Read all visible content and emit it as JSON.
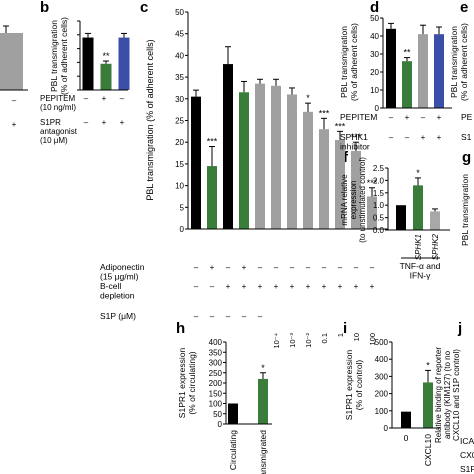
{
  "panel_labels": [
    "b",
    "c",
    "d",
    "e",
    "f",
    "g",
    "h",
    "i",
    "j"
  ],
  "colors": {
    "black": "#000000",
    "green": "#3a7d3a",
    "grey": "#a0a0a0",
    "blue": "#3b4fa8",
    "light_grey": "#a8a8a8"
  },
  "chart_data": [
    {
      "id": "a_partial",
      "type": "bar",
      "series": [
        {
          "values": [
            37
          ]
        }
      ],
      "row_marks": [
        "–",
        "+"
      ]
    },
    {
      "id": "b",
      "type": "bar",
      "ylabel": "PBL transmigration\n(% of adherent cells)",
      "ylim": [
        0,
        50
      ],
      "yticks": [
        0,
        10,
        20,
        30,
        40,
        50
      ],
      "values": [
        38,
        19,
        38
      ],
      "errors": [
        3,
        2,
        3
      ],
      "colors": [
        "#000000",
        "#3a7d3a",
        "#3b4fa8"
      ],
      "sig": [
        "",
        "**",
        ""
      ],
      "conditions": [
        {
          "label": "PEPITEM\n(10 ng/ml)",
          "marks": [
            "–",
            "+",
            "–"
          ]
        },
        {
          "label": "S1PR\nantagonist\n(10 μM)",
          "marks": [
            "–",
            "+",
            "+"
          ]
        }
      ]
    },
    {
      "id": "c",
      "type": "bar",
      "ylabel": "PBL transmigration (% of adherent cells)",
      "ylim": [
        0,
        50
      ],
      "yticks": [
        0,
        5,
        10,
        15,
        20,
        25,
        30,
        35,
        40,
        45,
        50
      ],
      "values": [
        30.5,
        14.5,
        38,
        31.5,
        33.5,
        33,
        31,
        27,
        23,
        20.5,
        18,
        7.5
      ],
      "errors": [
        1.5,
        4.5,
        4,
        2.5,
        1,
        1.5,
        1.5,
        2,
        2.5,
        2,
        2,
        2
      ],
      "colors": [
        "#000000",
        "#3a7d3a",
        "#000000",
        "#3a7d3a",
        "#a0a0a0",
        "#a0a0a0",
        "#a0a0a0",
        "#a0a0a0",
        "#a0a0a0",
        "#a0a0a0",
        "#a0a0a0",
        "#a0a0a0"
      ],
      "sig": [
        "",
        "***",
        "",
        "",
        "",
        "",
        "",
        "*",
        "***",
        "***",
        "***",
        "***"
      ],
      "conditions": [
        {
          "label": "Adiponectin\n(15 μg/ml)",
          "marks": [
            "–",
            "+",
            "–",
            "+",
            "–",
            "–",
            "–",
            "–",
            "–",
            "–",
            "–",
            "–"
          ]
        },
        {
          "label": "B-cell\ndepletion",
          "marks": [
            "–",
            "–",
            "+",
            "+",
            "+",
            "+",
            "+",
            "+",
            "+",
            "+",
            "+",
            "+"
          ]
        },
        {
          "label": "S1P (μM)",
          "marks": [
            "–",
            "–",
            "–",
            "–",
            "–",
            "10⁻⁴",
            "10⁻³",
            "10⁻²",
            "0.1",
            "1",
            "10",
            "100"
          ]
        }
      ]
    },
    {
      "id": "d",
      "type": "bar",
      "ylabel": "PBL transmigration\n(% of adherent cells)",
      "ylim": [
        0,
        50
      ],
      "yticks": [
        0,
        10,
        20,
        30,
        40,
        50
      ],
      "values": [
        44,
        26,
        41,
        41
      ],
      "errors": [
        3,
        2,
        5,
        4
      ],
      "colors": [
        "#000000",
        "#3a7d3a",
        "#a0a0a0",
        "#3b4fa8"
      ],
      "sig": [
        "",
        "**",
        "",
        ""
      ],
      "conditions": [
        {
          "label": "PEPITEM",
          "marks": [
            "–",
            "+",
            "–",
            "+"
          ]
        },
        {
          "label": "SPHK1\ninhibitor",
          "marks": [
            "–",
            "–",
            "+",
            "+"
          ]
        }
      ]
    },
    {
      "id": "e",
      "type": "bar",
      "ylabel": "PBL transmigration\n(% of adherent cells)",
      "row_labels": [
        "PE",
        "S1"
      ]
    },
    {
      "id": "f",
      "type": "bar",
      "ylabel": "mRNA relative\nexpression\n(to unstimulated control)",
      "ylim": [
        0,
        2.5
      ],
      "yticks": [
        0,
        0.5,
        1.0,
        1.5,
        2.0,
        2.5
      ],
      "categories": [
        "",
        "SPHK1",
        "SPHK2"
      ],
      "values": [
        1.0,
        1.8,
        0.75
      ],
      "errors": [
        0,
        0.3,
        0.1
      ],
      "colors": [
        "#000000",
        "#3a7d3a",
        "#a8a8a8"
      ],
      "sig": [
        "",
        "*",
        ""
      ],
      "group_label": "TNF-α and\nIFN-γ"
    },
    {
      "id": "g",
      "type": "bar",
      "ylabel": "PBL transmigration"
    },
    {
      "id": "h",
      "type": "bar",
      "ylabel": "S1PR1 expression\n(% of circulating)",
      "ylim": [
        0,
        400
      ],
      "yticks": [
        0,
        50,
        100,
        150,
        200,
        250,
        300,
        350,
        400
      ],
      "categories": [
        "Circulating",
        "Transmigrated"
      ],
      "values": [
        100,
        220
      ],
      "errors": [
        0,
        30
      ],
      "colors": [
        "#000000",
        "#3a7d3a"
      ],
      "sig": [
        "",
        "*"
      ]
    },
    {
      "id": "i",
      "type": "bar",
      "ylabel": "S1PR1 expression\n(% of control)",
      "ylim": [
        0,
        500
      ],
      "yticks": [
        0,
        100,
        200,
        300,
        400,
        500
      ],
      "categories": [
        "0",
        "CXCL10"
      ],
      "values": [
        95,
        265
      ],
      "errors": [
        0,
        70
      ],
      "colors": [
        "#000000",
        "#3a7d3a"
      ],
      "sig": [
        "",
        "*"
      ]
    },
    {
      "id": "j",
      "type": "bar",
      "ylabel": "Relative binding of reporter\nantibody (KIM127) (to no\nCXCL10 and S1P control)",
      "row_labels": [
        "ICA",
        "CX0",
        "S1F"
      ]
    }
  ]
}
